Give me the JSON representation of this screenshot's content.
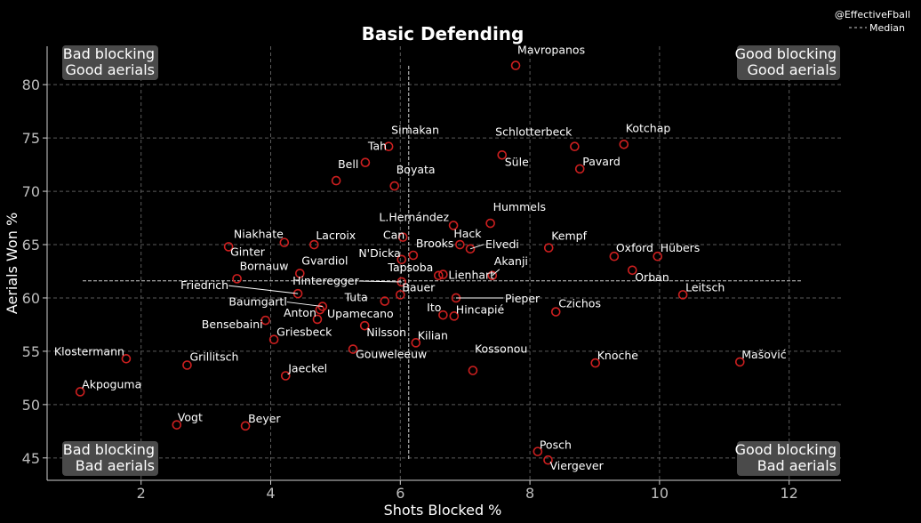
{
  "chart_data": {
    "type": "scatter",
    "title": "Basic Defending",
    "xlabel": "Shots Blocked %",
    "ylabel": "Aerials Won %",
    "xlim": [
      0.55,
      12.8
    ],
    "ylim": [
      42.9,
      83.6
    ],
    "xticks": [
      2,
      4,
      6,
      8,
      10,
      12
    ],
    "yticks": [
      45,
      50,
      55,
      60,
      65,
      70,
      75,
      80
    ],
    "grid": true,
    "median": {
      "label": "Median",
      "x": 6.13,
      "y": 61.6
    },
    "credit": "@EffectiveFball",
    "legend_position": "top-right",
    "marker_color": "#cc1f1f",
    "quadrants": {
      "top_left": [
        "Bad blocking",
        "Good aerials"
      ],
      "top_right": [
        "Good blocking",
        "Good aerials"
      ],
      "bottom_left": [
        "Bad blocking",
        "Bad aerials"
      ],
      "bottom_right": [
        "Good blocking",
        "Bad aerials"
      ]
    },
    "points": [
      {
        "name": "Mavropanos",
        "x": 7.78,
        "y": 81.8
      },
      {
        "name": "Simakan",
        "x": 5.82,
        "y": 74.2
      },
      {
        "name": "Schlotterbeck",
        "x": 8.69,
        "y": 74.2
      },
      {
        "name": "Kotchap",
        "x": 9.45,
        "y": 74.4
      },
      {
        "name": "Tah",
        "x": 5.46,
        "y": 72.7
      },
      {
        "name": "Süle",
        "x": 7.57,
        "y": 73.4
      },
      {
        "name": "Pavard",
        "x": 8.77,
        "y": 72.1
      },
      {
        "name": "Bell",
        "x": 5.01,
        "y": 71.0
      },
      {
        "name": "Boyata",
        "x": 5.91,
        "y": 70.5
      },
      {
        "name": "L.Hernández",
        "x": 6.82,
        "y": 66.8
      },
      {
        "name": "Hummels",
        "x": 7.39,
        "y": 67.0
      },
      {
        "name": "Hack",
        "x": 6.92,
        "y": 65.0
      },
      {
        "name": "Can",
        "x": 6.04,
        "y": 65.7
      },
      {
        "name": "Elvedi",
        "x": 7.08,
        "y": 64.6
      },
      {
        "name": "Kempf",
        "x": 8.29,
        "y": 64.7
      },
      {
        "name": "Niakhate",
        "x": 4.21,
        "y": 65.2
      },
      {
        "name": "Lacroix",
        "x": 4.67,
        "y": 65.0
      },
      {
        "name": "Ginter",
        "x": 3.35,
        "y": 64.8
      },
      {
        "name": "Brooks",
        "x": 6.2,
        "y": 64.0
      },
      {
        "name": "N'Dicka",
        "x": 6.02,
        "y": 63.6
      },
      {
        "name": "Oxford",
        "x": 9.3,
        "y": 63.9
      },
      {
        "name": "Hübers",
        "x": 9.97,
        "y": 63.9
      },
      {
        "name": "Akanji",
        "x": 7.42,
        "y": 62.1
      },
      {
        "name": "Gvardiol",
        "x": 4.45,
        "y": 62.3
      },
      {
        "name": "Tapsoba",
        "x": 6.59,
        "y": 62.1
      },
      {
        "name": "Orban",
        "x": 9.58,
        "y": 62.6
      },
      {
        "name": "Bornauw",
        "x": 3.48,
        "y": 61.8
      },
      {
        "name": "Hinteregger",
        "x": 6.02,
        "y": 61.5
      },
      {
        "name": "Lienhart",
        "x": 6.66,
        "y": 62.2
      },
      {
        "name": "Leitsch",
        "x": 10.36,
        "y": 60.3
      },
      {
        "name": "Friedrich",
        "x": 4.42,
        "y": 60.4
      },
      {
        "name": "Bauer",
        "x": 6.0,
        "y": 60.3
      },
      {
        "name": "Tuta",
        "x": 5.76,
        "y": 59.7
      },
      {
        "name": "Pieper",
        "x": 6.86,
        "y": 60.0
      },
      {
        "name": "Baumgartl",
        "x": 4.8,
        "y": 59.2
      },
      {
        "name": "Czichos",
        "x": 8.4,
        "y": 58.7
      },
      {
        "name": "Anton",
        "x": 4.76,
        "y": 58.9
      },
      {
        "name": "Upamecano",
        "x": 4.72,
        "y": 58.0
      },
      {
        "name": "Ito",
        "x": 6.66,
        "y": 58.4
      },
      {
        "name": "Hincapié",
        "x": 6.83,
        "y": 58.3
      },
      {
        "name": "Bensebaini",
        "x": 3.92,
        "y": 57.9
      },
      {
        "name": "Nilsson",
        "x": 5.45,
        "y": 57.4
      },
      {
        "name": "Griesbeck",
        "x": 4.05,
        "y": 56.1
      },
      {
        "name": "Kilian",
        "x": 6.24,
        "y": 55.8
      },
      {
        "name": "Gouweleeuw",
        "x": 5.27,
        "y": 55.2
      },
      {
        "name": "Klostermann",
        "x": 1.77,
        "y": 54.3
      },
      {
        "name": "Grillitsch",
        "x": 2.71,
        "y": 53.7
      },
      {
        "name": "Kossonou",
        "x": 7.12,
        "y": 53.2
      },
      {
        "name": "Knoche",
        "x": 9.01,
        "y": 53.9
      },
      {
        "name": "Mašović",
        "x": 11.24,
        "y": 54.0
      },
      {
        "name": "Jaeckel",
        "x": 4.23,
        "y": 52.7
      },
      {
        "name": "Akpoguma",
        "x": 1.06,
        "y": 51.2
      },
      {
        "name": "Vogt",
        "x": 2.55,
        "y": 48.1
      },
      {
        "name": "Beyer",
        "x": 3.61,
        "y": 48.0
      },
      {
        "name": "Posch",
        "x": 8.12,
        "y": 45.6
      },
      {
        "name": "Viergever",
        "x": 8.28,
        "y": 44.8
      }
    ]
  }
}
